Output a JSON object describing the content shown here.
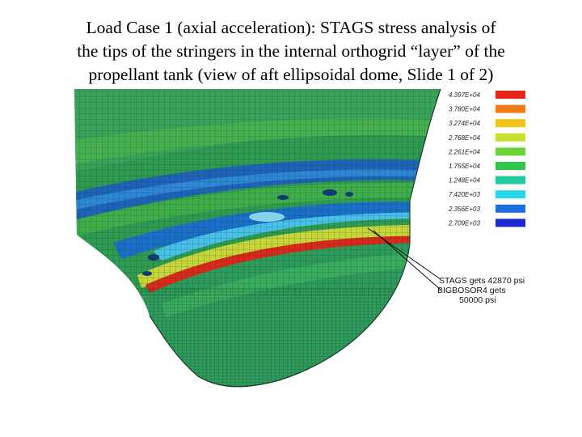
{
  "title": {
    "line1": "Load Case 1 (axial acceleration): STAGS stress analysis of",
    "line2": "the tips of the stringers in the internal orthogrid “layer” of the",
    "line3": "propellant tank (view of aft ellipsoidal dome, Slide 1 of 2)"
  },
  "legend": {
    "entries": [
      {
        "value": "4.397E+04",
        "color": "#e8261a"
      },
      {
        "value": "3.780E+04",
        "color": "#f07a1a"
      },
      {
        "value": "3.274E+04",
        "color": "#f0c31a"
      },
      {
        "value": "2.768E+04",
        "color": "#c8e02a"
      },
      {
        "value": "2.261E+04",
        "color": "#6cd43a"
      },
      {
        "value": "1.755E+04",
        "color": "#2fc44a"
      },
      {
        "value": "1.248E+04",
        "color": "#22c8a0"
      },
      {
        "value": "7.420E+03",
        "color": "#28d8e8"
      },
      {
        "value": "2.356E+03",
        "color": "#1e6ee0"
      },
      {
        "value": "2.709E+03",
        "color": "#1a2ad0"
      }
    ]
  },
  "annotation": {
    "line1": "STAGS gets 42870 psi",
    "line2": "BIGBOSOR4 gets",
    "line3": "50000 psi"
  }
}
